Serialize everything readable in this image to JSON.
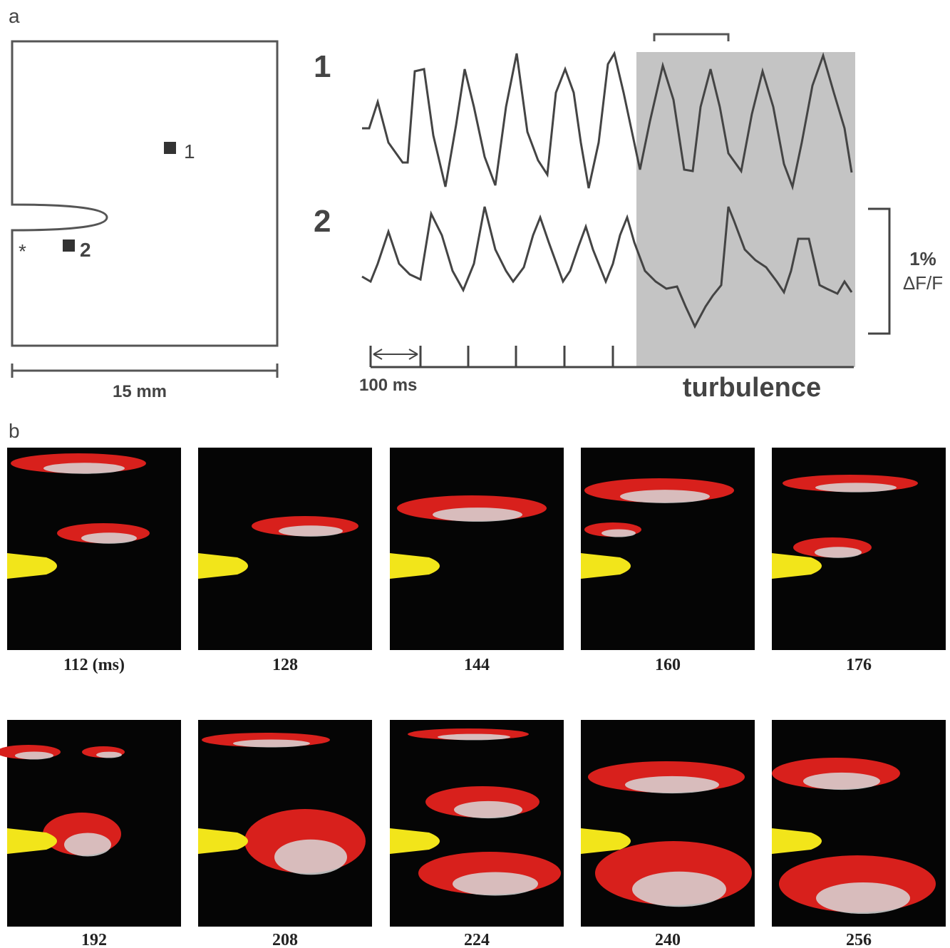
{
  "panel_a": {
    "label": "a",
    "map": {
      "point_1": "1",
      "point_2": "2",
      "stimulus": "*",
      "scale": "15 mm"
    },
    "traces": {
      "trace_1": "1",
      "trace_2": "2",
      "time_scale": "100 ms",
      "region": "turbulence",
      "amplitude": "1%",
      "amplitude_unit": "ΔF/F"
    }
  },
  "panel_b": {
    "label": "b",
    "frames": [
      "112 (ms)",
      "128",
      "144",
      "160",
      "176",
      "192",
      "208",
      "224",
      "240",
      "256"
    ]
  }
}
